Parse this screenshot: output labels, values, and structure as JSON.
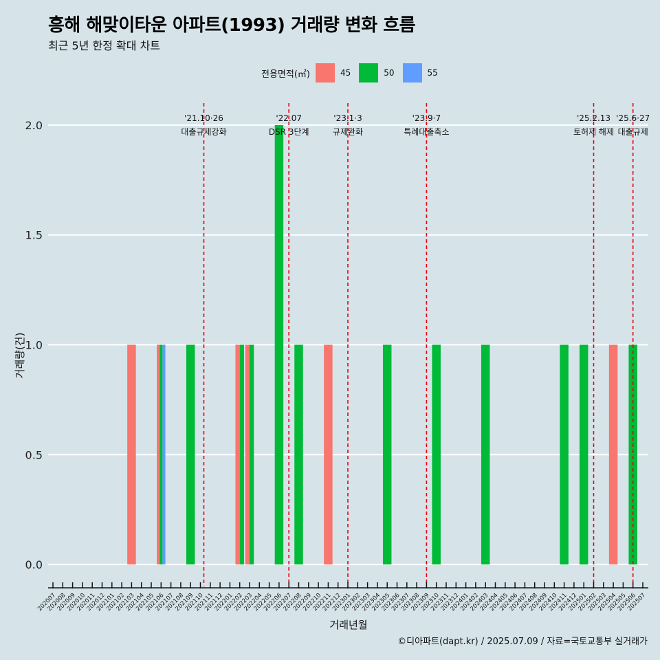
{
  "title": "흥해 해맞이타운 아파트(1993) 거래량 변화 흐름",
  "subtitle": "최근 5년 한정 확대 차트",
  "caption": "©디아파트(dapt.kr) / 2025.07.09 / 자료=국토교통부 실거래가",
  "legend": {
    "title": "전용면적(㎡)",
    "items": [
      {
        "label": "45",
        "color": "#f8766d"
      },
      {
        "label": "50",
        "color": "#00ba38"
      },
      {
        "label": "55",
        "color": "#619cff"
      }
    ]
  },
  "chart_data": {
    "type": "bar",
    "xlabel": "거래년월",
    "ylabel": "거래량(건)",
    "ylim": [
      -0.1,
      2.1
    ],
    "yticks": [
      0.0,
      0.5,
      1.0,
      1.5,
      2.0
    ],
    "ytick_labels": [
      "0.0",
      "0.5",
      "1.0",
      "1.5",
      "2.0"
    ],
    "grid": true,
    "legend_position": "top",
    "categories": [
      "202007",
      "202008",
      "202009",
      "202010",
      "202011",
      "202012",
      "202101",
      "202102",
      "202103",
      "202104",
      "202105",
      "202106",
      "202107",
      "202108",
      "202109",
      "202110",
      "202111",
      "202112",
      "202201",
      "202202",
      "202203",
      "202204",
      "202205",
      "202206",
      "202207",
      "202208",
      "202209",
      "202210",
      "202211",
      "202212",
      "202301",
      "202302",
      "202303",
      "202304",
      "202305",
      "202306",
      "202307",
      "202308",
      "202309",
      "202310",
      "202311",
      "202312",
      "202401",
      "202402",
      "202403",
      "202404",
      "202405",
      "202406",
      "202407",
      "202408",
      "202409",
      "202410",
      "202411",
      "202412",
      "202501",
      "202502",
      "202503",
      "202504",
      "202505",
      "202506",
      "202507"
    ],
    "bars": [
      {
        "month": "202103",
        "area": "45",
        "value": 1
      },
      {
        "month": "202106",
        "area": "45",
        "value": 1
      },
      {
        "month": "202106",
        "area": "50",
        "value": 1
      },
      {
        "month": "202106",
        "area": "55",
        "value": 1
      },
      {
        "month": "202109",
        "area": "50",
        "value": 1
      },
      {
        "month": "202202",
        "area": "45",
        "value": 1
      },
      {
        "month": "202202",
        "area": "50",
        "value": 1
      },
      {
        "month": "202203",
        "area": "45",
        "value": 1
      },
      {
        "month": "202203",
        "area": "50",
        "value": 1
      },
      {
        "month": "202206",
        "area": "50",
        "value": 2
      },
      {
        "month": "202208",
        "area": "50",
        "value": 1
      },
      {
        "month": "202211",
        "area": "45",
        "value": 1
      },
      {
        "month": "202305",
        "area": "50",
        "value": 1
      },
      {
        "month": "202310",
        "area": "50",
        "value": 1
      },
      {
        "month": "202403",
        "area": "50",
        "value": 1
      },
      {
        "month": "202411",
        "area": "50",
        "value": 1
      },
      {
        "month": "202501",
        "area": "50",
        "value": 1
      },
      {
        "month": "202504",
        "area": "45",
        "value": 1
      },
      {
        "month": "202506",
        "area": "50",
        "value": 1
      }
    ],
    "events": [
      {
        "label_date": "'21.10·26",
        "label_text": "대출규제강화",
        "month": "202110",
        "offset": 0.35
      },
      {
        "label_date": "'22.07",
        "label_text": "DSR 3단계",
        "month": "202207",
        "offset": 0.0
      },
      {
        "label_date": "'23.1·3",
        "label_text": "규제완화",
        "month": "202301",
        "offset": 0.0
      },
      {
        "label_date": "'23.9·7",
        "label_text": "특례대출축소",
        "month": "202309",
        "offset": 0.0
      },
      {
        "label_date": "'25.2.13",
        "label_text": "토허제 해제",
        "month": "202502",
        "offset": 0.0
      },
      {
        "label_date": "'25.6·27",
        "label_text": "대출규제",
        "month": "202506",
        "offset": 0.0
      }
    ]
  }
}
